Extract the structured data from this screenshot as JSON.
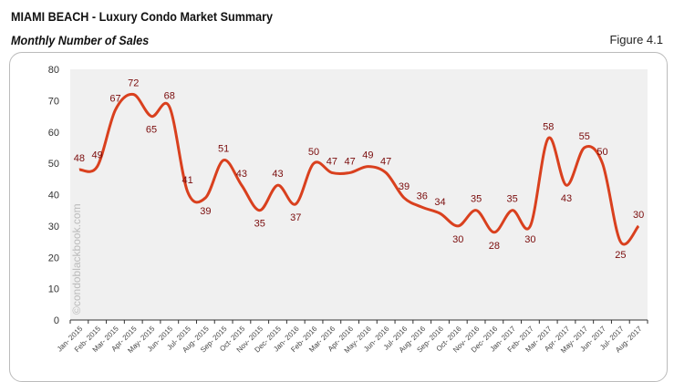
{
  "header": {
    "title": "MIAMI BEACH - Luxury Condo Market Summary",
    "subtitle": "Monthly Number of Sales",
    "figure": "Figure 4.1"
  },
  "watermark": "©condoblackbook.com",
  "chart_data": {
    "type": "line",
    "title": "Monthly Number of Sales",
    "ylim": [
      0,
      80
    ],
    "yticks": [
      0,
      10,
      20,
      30,
      40,
      50,
      60,
      70,
      80
    ],
    "grid": false,
    "line_color": "#d9401e",
    "label_color": "#7a0c0c",
    "plot_background": "#f0f0f0",
    "categories": [
      "Jan- 2015",
      "Feb- 2015",
      "Mar- 2015",
      "Apr- 2015",
      "May- 2015",
      "Jun- 2015",
      "Jul- 2015",
      "Aug- 2015",
      "Sep- 2015",
      "Oct- 2015",
      "Nov- 2015",
      "Dec- 2015",
      "Jan- 2016",
      "Feb- 2016",
      "Mar- 2016",
      "Apr- 2016",
      "May- 2016",
      "Jun- 2016",
      "Jul- 2016",
      "Aug- 2016",
      "Sep- 2016",
      "Oct- 2016",
      "Nov- 2016",
      "Dec- 2016",
      "Jan- 2017",
      "Feb- 2017",
      "Mar- 2017",
      "Apr- 2017",
      "May- 2017",
      "Jun- 2017",
      "Jul- 2017",
      "Aug- 2017"
    ],
    "values": [
      48,
      49,
      67,
      72,
      65,
      68,
      41,
      39,
      51,
      43,
      35,
      43,
      37,
      50,
      47,
      47,
      49,
      47,
      39,
      36,
      34,
      30,
      35,
      28,
      35,
      30,
      58,
      43,
      55,
      50,
      25,
      30
    ]
  }
}
